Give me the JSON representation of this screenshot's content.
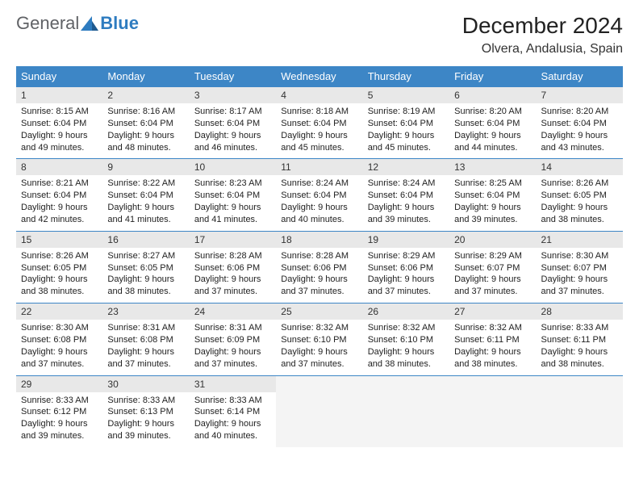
{
  "logo": {
    "text1": "General",
    "text2": "Blue"
  },
  "title": "December 2024",
  "location": "Olvera, Andalusia, Spain",
  "colors": {
    "header_bg": "#3d86c6",
    "header_text": "#ffffff",
    "daynum_bg": "#e8e8e8",
    "border": "#3d86c6",
    "logo_blue": "#2e7cc0",
    "logo_gray": "#606266",
    "empty_bg": "#f4f4f4"
  },
  "weekdays": [
    "Sunday",
    "Monday",
    "Tuesday",
    "Wednesday",
    "Thursday",
    "Friday",
    "Saturday"
  ],
  "labels": {
    "sunrise": "Sunrise:",
    "sunset": "Sunset:",
    "daylight": "Daylight:"
  },
  "days": [
    {
      "n": "1",
      "sr": "8:15 AM",
      "ss": "6:04 PM",
      "dl": "9 hours and 49 minutes."
    },
    {
      "n": "2",
      "sr": "8:16 AM",
      "ss": "6:04 PM",
      "dl": "9 hours and 48 minutes."
    },
    {
      "n": "3",
      "sr": "8:17 AM",
      "ss": "6:04 PM",
      "dl": "9 hours and 46 minutes."
    },
    {
      "n": "4",
      "sr": "8:18 AM",
      "ss": "6:04 PM",
      "dl": "9 hours and 45 minutes."
    },
    {
      "n": "5",
      "sr": "8:19 AM",
      "ss": "6:04 PM",
      "dl": "9 hours and 45 minutes."
    },
    {
      "n": "6",
      "sr": "8:20 AM",
      "ss": "6:04 PM",
      "dl": "9 hours and 44 minutes."
    },
    {
      "n": "7",
      "sr": "8:20 AM",
      "ss": "6:04 PM",
      "dl": "9 hours and 43 minutes."
    },
    {
      "n": "8",
      "sr": "8:21 AM",
      "ss": "6:04 PM",
      "dl": "9 hours and 42 minutes."
    },
    {
      "n": "9",
      "sr": "8:22 AM",
      "ss": "6:04 PM",
      "dl": "9 hours and 41 minutes."
    },
    {
      "n": "10",
      "sr": "8:23 AM",
      "ss": "6:04 PM",
      "dl": "9 hours and 41 minutes."
    },
    {
      "n": "11",
      "sr": "8:24 AM",
      "ss": "6:04 PM",
      "dl": "9 hours and 40 minutes."
    },
    {
      "n": "12",
      "sr": "8:24 AM",
      "ss": "6:04 PM",
      "dl": "9 hours and 39 minutes."
    },
    {
      "n": "13",
      "sr": "8:25 AM",
      "ss": "6:04 PM",
      "dl": "9 hours and 39 minutes."
    },
    {
      "n": "14",
      "sr": "8:26 AM",
      "ss": "6:05 PM",
      "dl": "9 hours and 38 minutes."
    },
    {
      "n": "15",
      "sr": "8:26 AM",
      "ss": "6:05 PM",
      "dl": "9 hours and 38 minutes."
    },
    {
      "n": "16",
      "sr": "8:27 AM",
      "ss": "6:05 PM",
      "dl": "9 hours and 38 minutes."
    },
    {
      "n": "17",
      "sr": "8:28 AM",
      "ss": "6:06 PM",
      "dl": "9 hours and 37 minutes."
    },
    {
      "n": "18",
      "sr": "8:28 AM",
      "ss": "6:06 PM",
      "dl": "9 hours and 37 minutes."
    },
    {
      "n": "19",
      "sr": "8:29 AM",
      "ss": "6:06 PM",
      "dl": "9 hours and 37 minutes."
    },
    {
      "n": "20",
      "sr": "8:29 AM",
      "ss": "6:07 PM",
      "dl": "9 hours and 37 minutes."
    },
    {
      "n": "21",
      "sr": "8:30 AM",
      "ss": "6:07 PM",
      "dl": "9 hours and 37 minutes."
    },
    {
      "n": "22",
      "sr": "8:30 AM",
      "ss": "6:08 PM",
      "dl": "9 hours and 37 minutes."
    },
    {
      "n": "23",
      "sr": "8:31 AM",
      "ss": "6:08 PM",
      "dl": "9 hours and 37 minutes."
    },
    {
      "n": "24",
      "sr": "8:31 AM",
      "ss": "6:09 PM",
      "dl": "9 hours and 37 minutes."
    },
    {
      "n": "25",
      "sr": "8:32 AM",
      "ss": "6:10 PM",
      "dl": "9 hours and 37 minutes."
    },
    {
      "n": "26",
      "sr": "8:32 AM",
      "ss": "6:10 PM",
      "dl": "9 hours and 38 minutes."
    },
    {
      "n": "27",
      "sr": "8:32 AM",
      "ss": "6:11 PM",
      "dl": "9 hours and 38 minutes."
    },
    {
      "n": "28",
      "sr": "8:33 AM",
      "ss": "6:11 PM",
      "dl": "9 hours and 38 minutes."
    },
    {
      "n": "29",
      "sr": "8:33 AM",
      "ss": "6:12 PM",
      "dl": "9 hours and 39 minutes."
    },
    {
      "n": "30",
      "sr": "8:33 AM",
      "ss": "6:13 PM",
      "dl": "9 hours and 39 minutes."
    },
    {
      "n": "31",
      "sr": "8:33 AM",
      "ss": "6:14 PM",
      "dl": "9 hours and 40 minutes."
    }
  ]
}
